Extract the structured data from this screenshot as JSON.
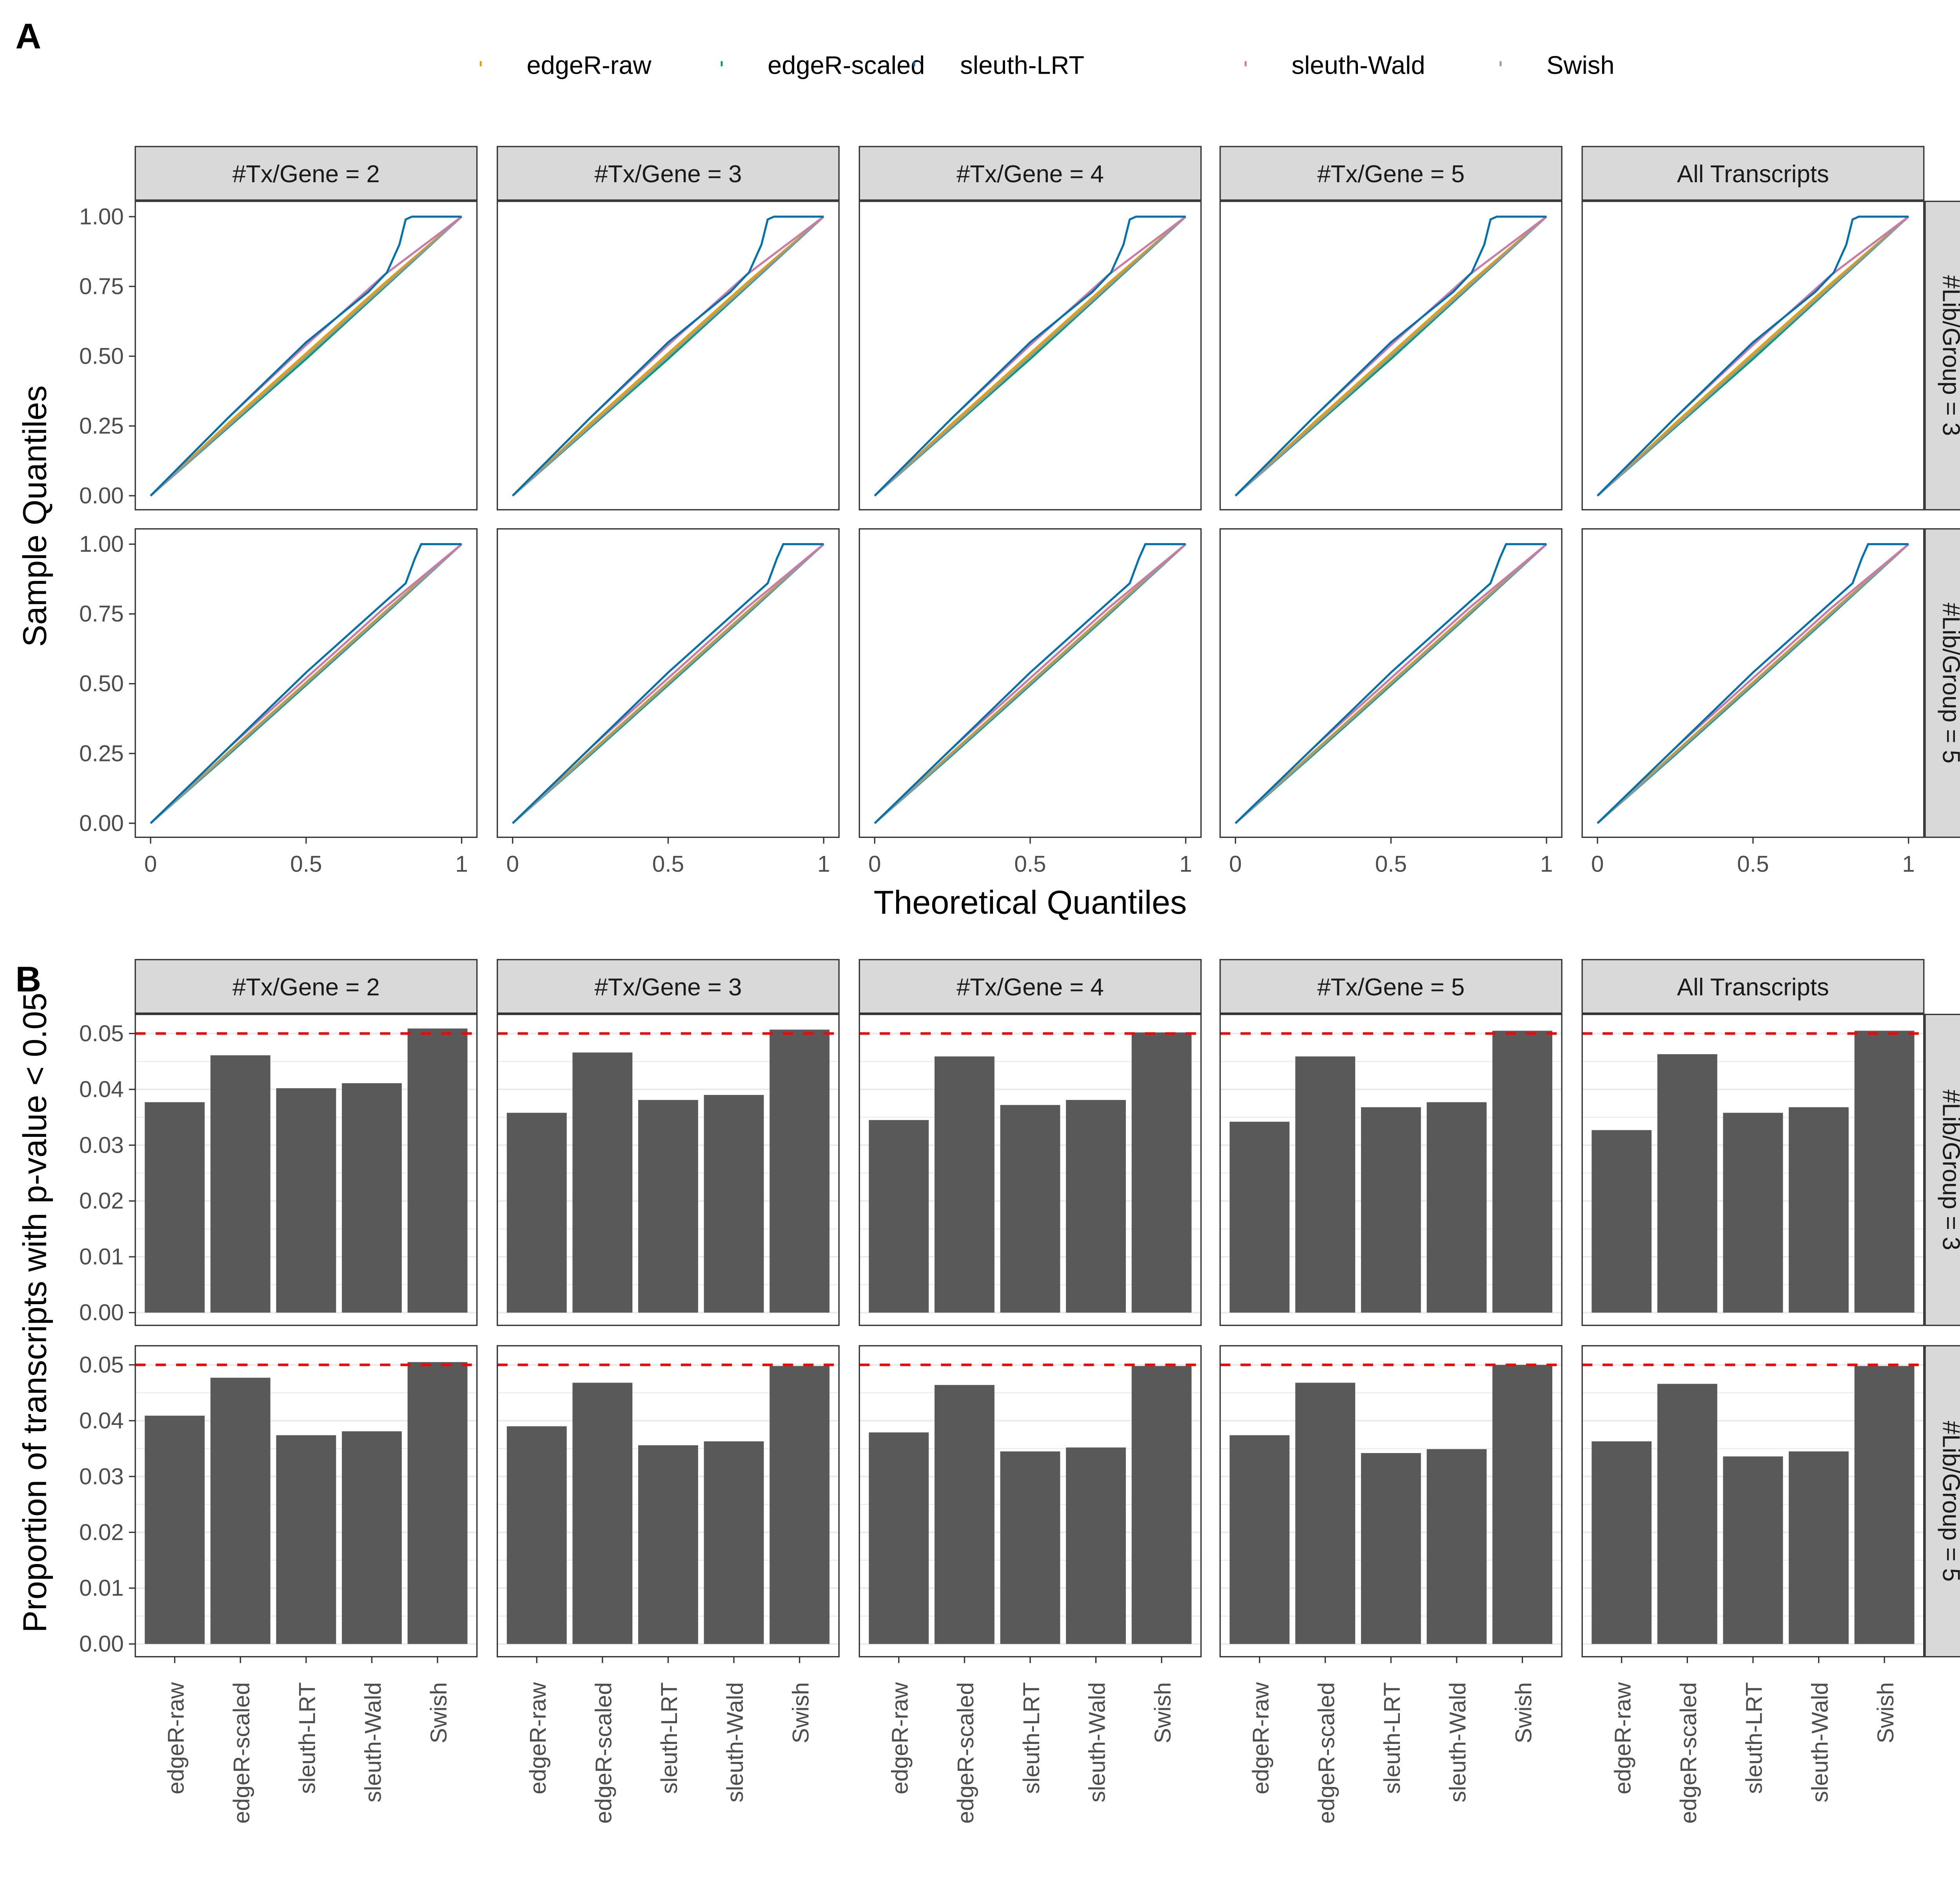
{
  "panel_labels": {
    "a": "A",
    "b": "B"
  },
  "legend": {
    "position": "top",
    "items": [
      {
        "name": "edgeR-raw",
        "color": "#E69F00"
      },
      {
        "name": "edgeR-scaled",
        "color": "#009E73"
      },
      {
        "name": "sleuth-LRT",
        "color": "#0072B2"
      },
      {
        "name": "sleuth-Wald",
        "color": "#CC79A7"
      },
      {
        "name": "Swish",
        "color": "#999999"
      }
    ]
  },
  "facets": {
    "columns": [
      "#Tx/Gene = 2",
      "#Tx/Gene = 3",
      "#Tx/Gene = 4",
      "#Tx/Gene = 5",
      "All Transcripts"
    ],
    "rows": [
      "#Lib/Group = 3",
      "#Lib/Group = 5"
    ]
  },
  "chart_data": [
    {
      "type": "line",
      "xlabel": "Theoretical Quantiles",
      "ylabel": "Sample Quantiles",
      "xlim": [
        0,
        1
      ],
      "ylim": [
        0,
        1
      ],
      "x_ticks": [
        "0",
        "0.5",
        "1"
      ],
      "x_tick_values": [
        0,
        0.5,
        1
      ],
      "y_ticks": [
        "0.00",
        "0.25",
        "0.50",
        "0.75",
        "1.00"
      ],
      "y_tick_values": [
        0,
        0.25,
        0.5,
        0.75,
        1
      ],
      "grid": false,
      "rows": [
        {
          "row": "#Lib/Group = 3",
          "series": [
            {
              "name": "edgeR-raw",
              "x": [
                0,
                0.25,
                0.5,
                0.75,
                1
              ],
              "y": [
                0,
                0.26,
                0.51,
                0.76,
                1
              ]
            },
            {
              "name": "edgeR-scaled",
              "x": [
                0,
                0.25,
                0.5,
                0.75,
                1
              ],
              "y": [
                0,
                0.245,
                0.49,
                0.745,
                1
              ]
            },
            {
              "name": "Swish",
              "x": [
                0,
                0.25,
                0.5,
                0.75,
                1
              ],
              "y": [
                0,
                0.25,
                0.5,
                0.75,
                1
              ]
            },
            {
              "name": "sleuth-Wald",
              "x": [
                0,
                0.25,
                0.5,
                0.75,
                1
              ],
              "y": [
                0,
                0.28,
                0.54,
                0.79,
                1
              ]
            },
            {
              "name": "sleuth-LRT",
              "x": [
                0,
                0.25,
                0.5,
                0.7,
                0.76,
                0.8,
                0.82,
                0.84,
                1
              ],
              "y": [
                0,
                0.28,
                0.55,
                0.73,
                0.8,
                0.9,
                0.99,
                1,
                1
              ]
            }
          ]
        },
        {
          "row": "#Lib/Group = 5",
          "series": [
            {
              "name": "edgeR-raw",
              "x": [
                0,
                0.25,
                0.5,
                0.75,
                1
              ],
              "y": [
                0,
                0.255,
                0.505,
                0.755,
                1
              ]
            },
            {
              "name": "edgeR-scaled",
              "x": [
                0,
                0.25,
                0.5,
                0.75,
                1
              ],
              "y": [
                0,
                0.245,
                0.495,
                0.745,
                1
              ]
            },
            {
              "name": "Swish",
              "x": [
                0,
                0.25,
                0.5,
                0.75,
                1
              ],
              "y": [
                0,
                0.25,
                0.5,
                0.75,
                1
              ]
            },
            {
              "name": "sleuth-Wald",
              "x": [
                0,
                0.25,
                0.5,
                0.75,
                1
              ],
              "y": [
                0,
                0.27,
                0.52,
                0.77,
                1
              ]
            },
            {
              "name": "sleuth-LRT",
              "x": [
                0,
                0.25,
                0.5,
                0.75,
                0.82,
                0.85,
                0.87,
                1
              ],
              "y": [
                0,
                0.27,
                0.54,
                0.79,
                0.86,
                0.95,
                1,
                1
              ]
            }
          ]
        }
      ]
    },
    {
      "type": "bar",
      "ylabel": "Proportion of transcripts with p-value < 0.05",
      "ylim": [
        0,
        0.052
      ],
      "y_ticks": [
        "0.00",
        "0.01",
        "0.02",
        "0.03",
        "0.04",
        "0.05"
      ],
      "y_tick_values": [
        0,
        0.01,
        0.02,
        0.03,
        0.04,
        0.05
      ],
      "categories": [
        "edgeR-raw",
        "edgeR-scaled",
        "sleuth-LRT",
        "sleuth-Wald",
        "Swish"
      ],
      "bar_color": "#595959",
      "reference_line": {
        "y": 0.05,
        "color": "#FF0000",
        "style": "dashed"
      },
      "grid": true,
      "values": [
        [
          [
            0.0377,
            0.0461,
            0.0402,
            0.0411,
            0.0509
          ],
          [
            0.0358,
            0.0466,
            0.0381,
            0.039,
            0.0507
          ],
          [
            0.0345,
            0.0459,
            0.0372,
            0.0381,
            0.0502
          ],
          [
            0.0342,
            0.0459,
            0.0368,
            0.0377,
            0.0505
          ],
          [
            0.0327,
            0.0463,
            0.0358,
            0.0368,
            0.0505
          ]
        ],
        [
          [
            0.0409,
            0.0477,
            0.0374,
            0.0381,
            0.0505
          ],
          [
            0.039,
            0.0468,
            0.0356,
            0.0363,
            0.0498
          ],
          [
            0.0379,
            0.0464,
            0.0345,
            0.0352,
            0.0498
          ],
          [
            0.0374,
            0.0468,
            0.0342,
            0.0349,
            0.05
          ],
          [
            0.0363,
            0.0466,
            0.0336,
            0.0345,
            0.0498
          ]
        ]
      ]
    }
  ]
}
